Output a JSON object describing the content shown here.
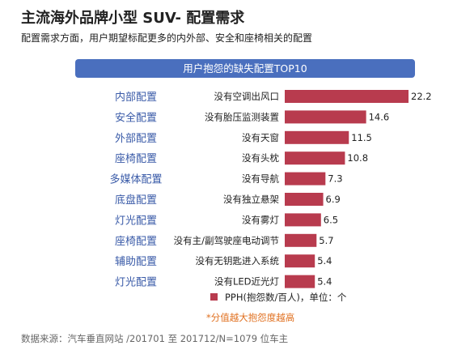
{
  "header": {
    "title": "主流海外品牌小型 SUV- 配置需求",
    "subtitle": "配置需求方面，用户期望标配更多的内外部、安全和座椅相关的配置"
  },
  "chart_data": {
    "type": "bar",
    "orientation": "horizontal",
    "title": "用户抱怨的缺失配置TOP10",
    "groups": [
      "内部配置",
      "安全配置",
      "外部配置",
      "座椅配置",
      "多媒体配置",
      "底盘配置",
      "灯光配置",
      "座椅配置",
      "辅助配置",
      "灯光配置"
    ],
    "categories": [
      "没有空调出风口",
      "没有胎压监测装置",
      "没有天窗",
      "没有头枕",
      "没有导航",
      "没有独立悬架",
      "没有雾灯",
      "没有主/副驾驶座电动调节",
      "没有无钥匙进入系统",
      "没有LED近光灯"
    ],
    "series": [
      {
        "name": "PPH(抱怨数/百人)，单位：个",
        "values": [
          22.2,
          14.6,
          11.5,
          10.8,
          7.3,
          6.9,
          6.5,
          5.7,
          5.4,
          5.4
        ]
      }
    ],
    "value_labels": [
      "22.2",
      "14.6",
      "11.5",
      "10.8",
      "7.3",
      "6.9",
      "6.5",
      "5.7",
      "5.4",
      "5.4"
    ],
    "note": "*分值越大抱怨度越高",
    "xlim": [
      0,
      22.2
    ],
    "colors": {
      "bar": "#b83b4e",
      "group_label": "#3a5ba8",
      "banner": "#4a6fbe",
      "note": "#e07020"
    },
    "grid": false,
    "legend_position": "bottom"
  },
  "footer": {
    "source": "数据来源：汽车垂直网站 /201701 至 201712/N=1079 位车主"
  }
}
